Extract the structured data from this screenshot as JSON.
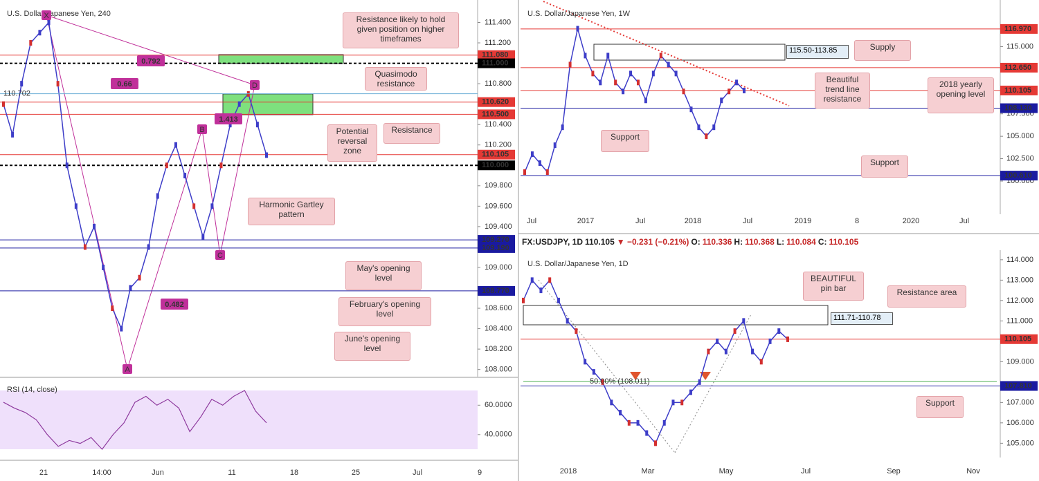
{
  "header": {
    "symbol": "FX:USDJPY, 1D",
    "last": "110.105",
    "change": "▼ −0.231 (−0.21%)",
    "ohlc": [
      {
        "k": "O:",
        "v": "110.336"
      },
      {
        "k": "H:",
        "v": "110.368"
      },
      {
        "k": "L:",
        "v": "110.084"
      },
      {
        "k": "C:",
        "v": "110.105"
      }
    ]
  },
  "panels": [
    {
      "title": "U.S. Dollar/Japanese Yen, 240",
      "ylim": [
        107.93,
        111.62
      ],
      "yticks": [
        {
          "value": 111.4,
          "label": "111.400"
        },
        {
          "value": 111.2,
          "label": "111.200"
        },
        {
          "value": 110.8,
          "label": "110.800"
        },
        {
          "value": 110.4,
          "label": "110.400"
        },
        {
          "value": 110.2,
          "label": "110.200"
        },
        {
          "value": 109.8,
          "label": "109.800"
        },
        {
          "value": 109.6,
          "label": "109.600"
        },
        {
          "value": 109.4,
          "label": "109.400"
        },
        {
          "value": 109.0,
          "label": "109.000"
        },
        {
          "value": 108.6,
          "label": "108.600"
        },
        {
          "value": 108.4,
          "label": "108.400"
        },
        {
          "value": 108.2,
          "label": "108.200"
        },
        {
          "value": 108.0,
          "label": "108.000"
        }
      ],
      "levels": [
        {
          "value": 111.08,
          "label": "111.080",
          "color": "#e53935"
        },
        {
          "value": 111.0,
          "label": "111.000",
          "color": "#000000"
        },
        {
          "value": 110.62,
          "label": "110.620",
          "color": "#e53935"
        },
        {
          "value": 110.5,
          "label": "110.500",
          "color": "#e53935"
        },
        {
          "value": 110.105,
          "label": "110.105",
          "color": "#e53935"
        },
        {
          "value": 110.0,
          "label": "110.000",
          "color": "#000000"
        },
        {
          "value": 109.27,
          "label": "109.270",
          "color": "#1a1aa0"
        },
        {
          "value": 109.19,
          "label": "109.190",
          "color": "#1a1aa0"
        },
        {
          "value": 108.77,
          "label": "108.770",
          "color": "#1a1aa0"
        }
      ],
      "marker": {
        "value": 110.702,
        "label": "110.702"
      },
      "closes": [
        110.6,
        110.3,
        110.8,
        111.2,
        111.3,
        111.4,
        110.8,
        110.0,
        109.6,
        109.2,
        109.4,
        109.0,
        108.6,
        108.4,
        108.8,
        108.9,
        109.2,
        109.7,
        110.0,
        110.2,
        109.9,
        109.6,
        109.3,
        109.6,
        110.0,
        110.4,
        110.6,
        110.7,
        110.4,
        110.1
      ],
      "xlabels": [
        "21",
        "14:00",
        "Jun",
        "11",
        "18",
        "25",
        "Jul",
        "9"
      ],
      "annotations": [
        "Resistance likely to hold given position on higher timeframes",
        "Quasimodo resistance",
        "Resistance",
        "Potential reversal zone",
        "Harmonic Gartley pattern",
        "May's opening level",
        "February's opening level",
        "June's opening level"
      ],
      "pattern_labels": [
        "X",
        "A",
        "B",
        "C",
        "D"
      ],
      "ratios": [
        "0.792",
        "0.66",
        "1.413",
        "0.482"
      ],
      "rsi": {
        "title": "RSI (14, close)",
        "ylim": [
          23,
          78
        ],
        "yticks": [
          {
            "value": 60,
            "label": "60.0000"
          },
          {
            "value": 40,
            "label": "40.0000"
          }
        ],
        "values": [
          62,
          58,
          55,
          50,
          40,
          32,
          36,
          34,
          38,
          30,
          40,
          48,
          62,
          66,
          60,
          64,
          58,
          42,
          52,
          64,
          60,
          66,
          70,
          56,
          48
        ]
      }
    },
    {
      "title": "U.S. Dollar/Japanese Yen, 1W",
      "ylim": [
        96.3,
        120.2
      ],
      "yticks": [
        {
          "value": 115,
          "label": "115.000"
        },
        {
          "value": 107.5,
          "label": "107.500"
        },
        {
          "value": 105,
          "label": "105.000"
        },
        {
          "value": 102.5,
          "label": "102.500"
        },
        {
          "value": 100,
          "label": "100.000"
        }
      ],
      "levels": [
        {
          "value": 116.97,
          "label": "116.970",
          "color": "#e53935"
        },
        {
          "value": 112.65,
          "label": "112.650",
          "color": "#e53935"
        },
        {
          "value": 110.105,
          "label": "110.105",
          "color": "#e53935"
        },
        {
          "value": 108.13,
          "label": "108.130",
          "color": "#1a1aa0"
        },
        {
          "value": 100.61,
          "label": "100.610",
          "color": "#1a1aa0"
        }
      ],
      "closes": [
        101,
        103,
        102,
        101,
        104,
        106,
        113,
        117,
        114,
        112,
        111,
        114,
        111,
        110,
        112,
        111,
        109,
        112,
        114,
        113,
        112,
        110,
        108,
        106,
        105,
        106,
        109,
        110,
        111,
        110.1
      ],
      "xlabels": [
        "Jul",
        "2017",
        "Jul",
        "2018",
        "Jul",
        "2019",
        "8",
        "2020",
        "Jul"
      ],
      "annotations": [
        "115.50-113.85",
        "Supply",
        "Beautiful trend line resistance",
        "2018 yearly opening level",
        "Support",
        "Support"
      ]
    },
    {
      "title": "U.S. Dollar/Japanese Yen, 1D",
      "ylim": [
        104.3,
        114.47
      ],
      "yticks": [
        {
          "value": 114,
          "label": "114.000"
        },
        {
          "value": 113,
          "label": "113.000"
        },
        {
          "value": 112,
          "label": "112.000"
        },
        {
          "value": 111,
          "label": "111.000"
        },
        {
          "value": 109,
          "label": "109.000"
        },
        {
          "value": 107,
          "label": "107.000"
        },
        {
          "value": 106,
          "label": "106.000"
        },
        {
          "value": 105,
          "label": "105.000"
        }
      ],
      "levels": [
        {
          "value": 110.105,
          "label": "110.105",
          "color": "#e53935"
        },
        {
          "value": 107.81,
          "label": "107.810",
          "color": "#1a1aa0"
        }
      ],
      "closes": [
        112,
        113,
        112.5,
        113,
        112,
        111,
        110.5,
        109,
        108.5,
        108,
        107,
        106.5,
        106,
        106,
        105.5,
        105,
        106,
        107,
        107,
        107.5,
        108,
        109.5,
        110,
        109.5,
        110.5,
        111,
        109.5,
        109,
        110,
        110.5,
        110.1
      ],
      "xlabels": [
        "2018",
        "Mar",
        "May",
        "Jul",
        "Sep",
        "Nov"
      ],
      "annotations": [
        "111.71-110.78",
        "BEAUTIFUL pin bar",
        "Resistance area",
        "Support"
      ],
      "fib": "50.00% (108.011)"
    }
  ]
}
